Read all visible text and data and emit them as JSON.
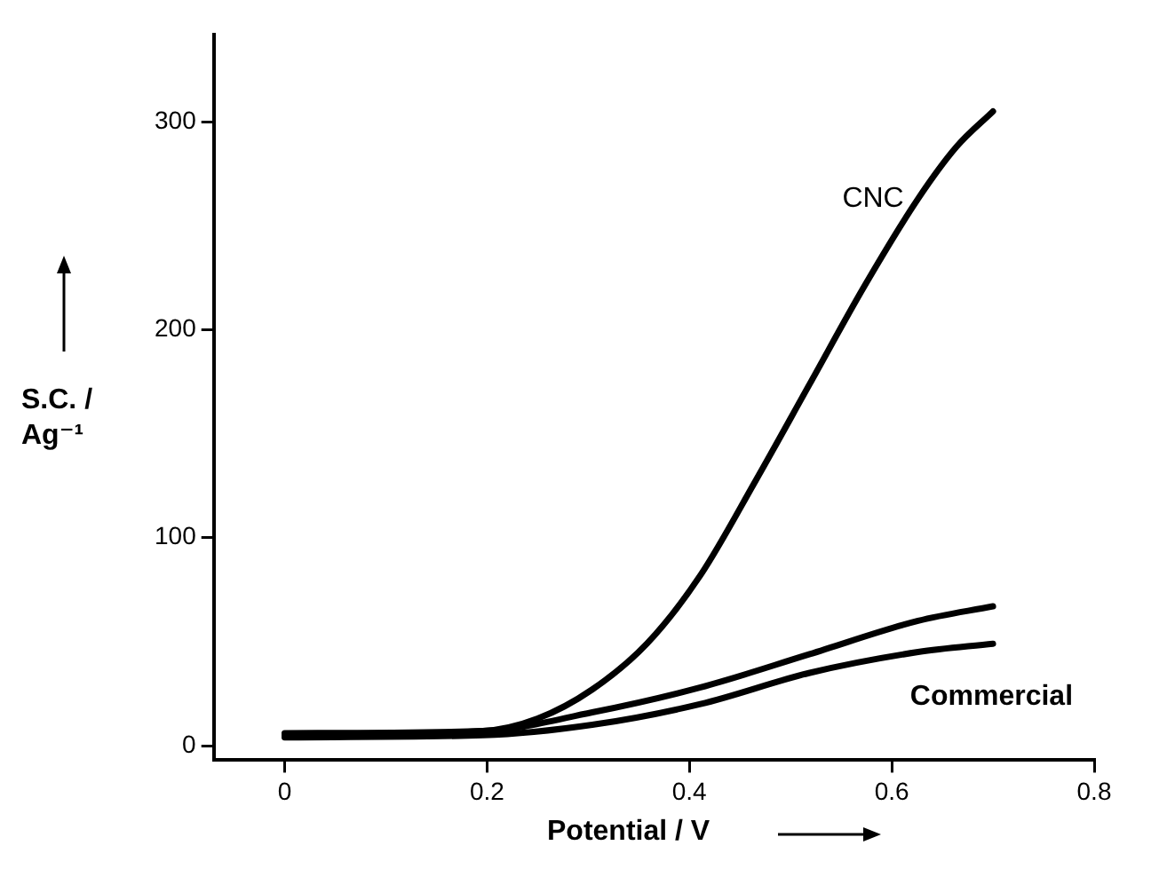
{
  "chart_data": {
    "type": "line",
    "xlabel": "Potential / V",
    "ylabel": "S.C. / Ag⁻¹",
    "xlim": [
      -0.07,
      0.8
    ],
    "ylim": [
      -7,
      342
    ],
    "xticks": [
      0,
      0.2,
      0.4,
      0.6,
      0.8
    ],
    "yticks": [
      0,
      100,
      200,
      300
    ],
    "grid": false,
    "legend": false,
    "marker": "none",
    "line_style": "solid",
    "series": [
      {
        "name": "CNC",
        "color": "#000000",
        "x": [
          0,
          0.196,
          0.25,
          0.304,
          0.358,
          0.411,
          0.465,
          0.519,
          0.573,
          0.626,
          0.664,
          0.7
        ],
        "values": [
          5,
          7,
          13,
          27,
          49,
          82,
          127,
          174,
          221,
          263,
          288,
          305
        ]
      },
      {
        "color": "#000000",
        "x": [
          0,
          0.196,
          0.304,
          0.411,
          0.519,
          0.626,
          0.7
        ],
        "values": [
          6,
          7,
          16,
          28,
          44,
          60,
          67
        ]
      },
      {
        "name": "Commercial",
        "color": "#000000",
        "x": [
          0,
          0.196,
          0.304,
          0.411,
          0.519,
          0.626,
          0.7
        ],
        "values": [
          4,
          5,
          10,
          20,
          35,
          45,
          49
        ]
      }
    ]
  }
}
